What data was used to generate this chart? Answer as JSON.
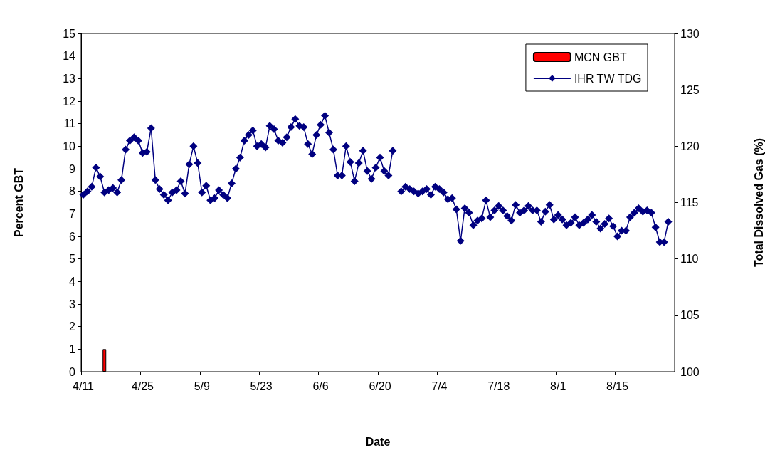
{
  "chart_data": {
    "type": "line",
    "xlabel": "Date",
    "ylabel": "Percent GBT",
    "y2label": "Total Dissolved Gas (%)",
    "categories": [
      "4/11",
      null,
      null,
      null,
      null,
      null,
      null,
      null,
      null,
      null,
      null,
      null,
      null,
      null,
      "4/25",
      null,
      null,
      null,
      null,
      null,
      null,
      null,
      null,
      null,
      null,
      null,
      null,
      null,
      "5/9",
      null,
      null,
      null,
      null,
      null,
      null,
      null,
      null,
      null,
      null,
      null,
      null,
      null,
      "5/23",
      null,
      null,
      null,
      null,
      null,
      null,
      null,
      null,
      null,
      null,
      null,
      null,
      null,
      "6/6",
      null,
      null,
      null,
      null,
      null,
      null,
      null,
      null,
      null,
      null,
      null,
      null,
      null,
      "6/20",
      null,
      null,
      null,
      null,
      null,
      null,
      null,
      null,
      null,
      null,
      null,
      null,
      null,
      "7/4",
      null,
      null,
      null,
      null,
      null,
      null,
      null,
      null,
      null,
      null,
      null,
      null,
      null,
      "7/18",
      null,
      null,
      null,
      null,
      null,
      null,
      null,
      null,
      null,
      null,
      null,
      null,
      null,
      "8/1",
      null,
      null,
      null,
      null,
      null,
      null,
      null,
      null,
      null,
      null,
      null,
      null,
      null,
      "8/15",
      null,
      null,
      null,
      null,
      null,
      null,
      null,
      null,
      null,
      null,
      null,
      null,
      null
    ],
    "series": [
      {
        "name": "MCN GBT",
        "type": "bar",
        "color": "#ff0000",
        "values": [
          null,
          null,
          null,
          null,
          null,
          1,
          null,
          null,
          null,
          null,
          null,
          null,
          null,
          null,
          null,
          null,
          null,
          null,
          null,
          null,
          null,
          null,
          null,
          null,
          null,
          null,
          null,
          null,
          null,
          null,
          null,
          null,
          null,
          null,
          null,
          null,
          null,
          null,
          null,
          null,
          null,
          null,
          null,
          null,
          null,
          null,
          null,
          null,
          null,
          null,
          null,
          null,
          null,
          null,
          null,
          null,
          null,
          null,
          null,
          null,
          null,
          null,
          null,
          null,
          null,
          null,
          null,
          null,
          null,
          null,
          null,
          null,
          null,
          null,
          null,
          null,
          null,
          null,
          null,
          null,
          null,
          null,
          null,
          null,
          null,
          null,
          null,
          null,
          null,
          null,
          null,
          null,
          null,
          null,
          null,
          null,
          null,
          null,
          null,
          null,
          null,
          null,
          null,
          null,
          null,
          null,
          null,
          null,
          null,
          null,
          null,
          null,
          null,
          null,
          null,
          null,
          null,
          null,
          null,
          null,
          null,
          null,
          null,
          null,
          null,
          null,
          null,
          null,
          null,
          null,
          null,
          null,
          null,
          null,
          null,
          null,
          null,
          null,
          null,
          null
        ]
      },
      {
        "name": "IHR TW TDG",
        "axis": "y2",
        "color": "#000080",
        "values": [
          115.7,
          116.0,
          116.4,
          118.1,
          117.3,
          115.9,
          116.1,
          116.3,
          115.9,
          117.0,
          119.7,
          120.5,
          120.8,
          120.5,
          119.4,
          119.5,
          121.6,
          117.0,
          116.2,
          115.7,
          115.2,
          115.9,
          116.1,
          116.9,
          115.8,
          118.4,
          120.0,
          118.5,
          115.9,
          116.5,
          115.2,
          115.4,
          116.1,
          115.7,
          115.4,
          116.7,
          118.0,
          119.0,
          120.5,
          121.0,
          121.4,
          120.0,
          120.2,
          119.9,
          121.8,
          121.5,
          120.5,
          120.3,
          120.8,
          121.7,
          122.4,
          121.8,
          121.7,
          120.2,
          119.3,
          121.0,
          121.9,
          122.7,
          121.2,
          119.7,
          117.4,
          117.4,
          120.0,
          118.6,
          116.9,
          118.5,
          119.6,
          117.8,
          117.1,
          118.1,
          119.0,
          117.8,
          117.4,
          119.6,
          null,
          116.0,
          116.4,
          116.2,
          116.0,
          115.8,
          116.0,
          116.2,
          115.7,
          116.4,
          116.2,
          115.9,
          115.3,
          115.4,
          114.4,
          111.6,
          114.5,
          114.1,
          113.0,
          113.4,
          113.6,
          115.2,
          113.7,
          114.3,
          114.7,
          114.3,
          113.8,
          113.4,
          114.8,
          114.1,
          114.3,
          114.7,
          114.3,
          114.3,
          113.3,
          114.2,
          114.8,
          113.5,
          113.9,
          113.5,
          113.0,
          113.2,
          113.7,
          113.0,
          113.2,
          113.5,
          113.9,
          113.3,
          112.7,
          113.1,
          113.6,
          112.9,
          112.0,
          112.5,
          112.5,
          113.7,
          114.1,
          114.5,
          114.2,
          114.3,
          114.1,
          112.8,
          111.5,
          111.5,
          113.3,
          null
        ]
      }
    ],
    "ylim": [
      0,
      15
    ],
    "yticks": [
      0,
      1,
      2,
      3,
      4,
      5,
      6,
      7,
      8,
      9,
      10,
      11,
      12,
      13,
      14,
      15
    ],
    "y2lim": [
      100,
      130
    ],
    "y2ticks": [
      100,
      105,
      110,
      115,
      120,
      125,
      130
    ],
    "grid": false,
    "legend": "top right",
    "marker": "diamond",
    "line_style": "solid"
  }
}
